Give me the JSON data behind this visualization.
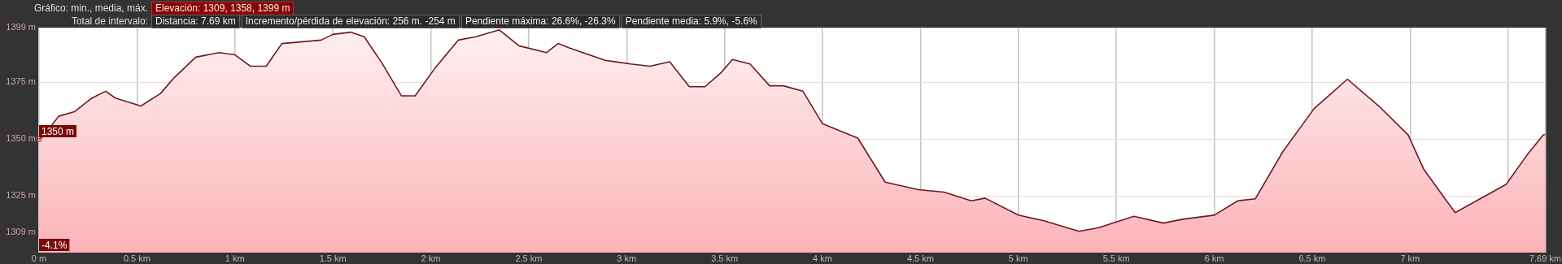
{
  "chart_data": {
    "type": "area",
    "title": "Gráfico: min., media, máx.",
    "subtitle": "Elevación: 1309, 1358, 1399 m",
    "annotations": [
      "Total de intervalo:",
      "Distancia: 7.69 km",
      "Incremento/pérdida de elevación: 256 m. -254 m",
      "Pendiente máxima: 26.6%, -26.3%",
      "Pendiente media: 5.9%, -5.6%",
      {
        "text": "1350 m",
        "x": 0,
        "y": 1350
      },
      {
        "text": "-4.1%",
        "x": 0
      }
    ],
    "xlim": [
      0,
      7.69
    ],
    "xticks": [
      {
        "value": 0,
        "label": "0 m"
      },
      {
        "value": 0.5,
        "label": "0.5 km"
      },
      {
        "value": 1,
        "label": "1 km"
      },
      {
        "value": 1.5,
        "label": "1.5 km"
      },
      {
        "value": 2,
        "label": "2 km"
      },
      {
        "value": 2.5,
        "label": "2.5 km"
      },
      {
        "value": 3,
        "label": "3 km"
      },
      {
        "value": 3.5,
        "label": "3.5 km"
      },
      {
        "value": 4,
        "label": "4 km"
      },
      {
        "value": 4.5,
        "label": "4.5 km"
      },
      {
        "value": 5,
        "label": "5 km"
      },
      {
        "value": 5.5,
        "label": "5.5 km"
      },
      {
        "value": 6,
        "label": "6 km"
      },
      {
        "value": 6.5,
        "label": "6.5 km"
      },
      {
        "value": 7,
        "label": "7 km"
      },
      {
        "value": 7.5,
        "label": null
      },
      {
        "value": 7.69,
        "label": "7.69 km"
      }
    ],
    "ylim": [
      1300,
      1399
    ],
    "yticks": [
      {
        "value": 1309,
        "label": "1309 m"
      },
      {
        "value": 1325,
        "label": "1325 m"
      },
      {
        "value": 1350,
        "label": "1350 m"
      },
      {
        "value": 1375,
        "label": "1375 m"
      },
      {
        "value": 1399,
        "label": "1399 m"
      }
    ],
    "grid": true,
    "legend": false,
    "marker": "none",
    "line_style": "solid",
    "series": [
      {
        "color": "#6b1a20",
        "x": [
          0,
          0.02,
          0.1,
          0.18,
          0.27,
          0.34,
          0.39,
          0.52,
          0.62,
          0.69,
          0.8,
          0.92,
          1.0,
          1.08,
          1.16,
          1.24,
          1.44,
          1.5,
          1.59,
          1.66,
          1.75,
          1.85,
          1.92,
          2.02,
          2.14,
          2.23,
          2.35,
          2.45,
          2.59,
          2.65,
          2.71,
          2.89,
          3.02,
          3.12,
          3.22,
          3.32,
          3.4,
          3.48,
          3.54,
          3.63,
          3.73,
          3.8,
          3.9,
          4.0,
          4.18,
          4.32,
          4.49,
          4.62,
          4.76,
          4.83,
          5.0,
          5.13,
          5.31,
          5.41,
          5.59,
          5.74,
          5.84,
          6.0,
          6.12,
          6.21,
          6.35,
          6.51,
          6.61,
          6.68,
          6.84,
          6.99,
          7.07,
          7.23,
          7.37,
          7.49,
          7.6,
          7.68,
          7.69
        ],
        "values": [
          1350,
          1351,
          1360,
          1362,
          1368,
          1371,
          1368,
          1364.5,
          1370,
          1377,
          1386,
          1388,
          1387,
          1382,
          1382,
          1392,
          1393.5,
          1396,
          1397,
          1395,
          1383.5,
          1369,
          1369,
          1381,
          1393.5,
          1395,
          1398,
          1391,
          1388,
          1392,
          1390,
          1384.6,
          1383,
          1382,
          1384,
          1373,
          1373,
          1379,
          1385,
          1383,
          1373.4,
          1373.4,
          1371,
          1356.7,
          1350.4,
          1331,
          1327.7,
          1326.6,
          1322.8,
          1324,
          1316.5,
          1314,
          1309.4,
          1311,
          1316,
          1313,
          1314.7,
          1316.5,
          1322.8,
          1323.7,
          1344.4,
          1363.4,
          1371,
          1376.3,
          1364.5,
          1351.8,
          1336.6,
          1317.6,
          1324.3,
          1330,
          1343.3,
          1351.8,
          1352
        ]
      }
    ]
  }
}
